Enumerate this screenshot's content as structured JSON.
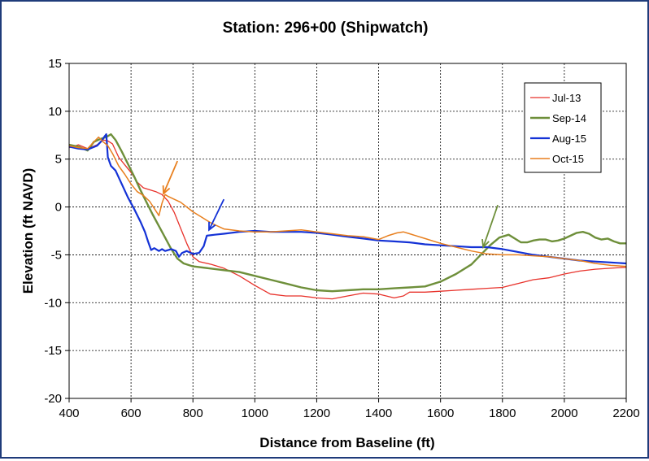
{
  "chart_data": {
    "type": "line",
    "title": "Station: 296+00 (Shipwatch)",
    "xlabel": "Distance from Baseline (ft)",
    "ylabel": "Elevation (ft NAVD)",
    "xlim": [
      400,
      2200
    ],
    "ylim": [
      -20,
      15
    ],
    "xticks": [
      400,
      600,
      800,
      1000,
      1200,
      1400,
      1600,
      1800,
      2000,
      2200
    ],
    "yticks": [
      15,
      10,
      5,
      0,
      -5,
      -10,
      -15,
      -20
    ],
    "grid": true,
    "legend_position": "top-right",
    "series": [
      {
        "name": "Jul-13",
        "color": "#e8322b",
        "width": 1.3,
        "points": [
          [
            400,
            6.2
          ],
          [
            430,
            6.5
          ],
          [
            460,
            6.1
          ],
          [
            490,
            6.5
          ],
          [
            510,
            7.0
          ],
          [
            525,
            6.9
          ],
          [
            540,
            6.6
          ],
          [
            560,
            5.2
          ],
          [
            580,
            4.4
          ],
          [
            600,
            3.6
          ],
          [
            620,
            2.6
          ],
          [
            640,
            2.0
          ],
          [
            660,
            1.8
          ],
          [
            680,
            1.6
          ],
          [
            700,
            1.3
          ],
          [
            720,
            0.6
          ],
          [
            740,
            -0.6
          ],
          [
            760,
            -2.2
          ],
          [
            780,
            -3.8
          ],
          [
            800,
            -5.2
          ],
          [
            820,
            -5.7
          ],
          [
            860,
            -6.0
          ],
          [
            900,
            -6.4
          ],
          [
            950,
            -7.2
          ],
          [
            1000,
            -8.2
          ],
          [
            1050,
            -9.1
          ],
          [
            1100,
            -9.3
          ],
          [
            1150,
            -9.3
          ],
          [
            1200,
            -9.5
          ],
          [
            1250,
            -9.6
          ],
          [
            1300,
            -9.3
          ],
          [
            1350,
            -9.0
          ],
          [
            1400,
            -9.1
          ],
          [
            1450,
            -9.5
          ],
          [
            1480,
            -9.3
          ],
          [
            1500,
            -8.9
          ],
          [
            1550,
            -8.9
          ],
          [
            1600,
            -8.8
          ],
          [
            1650,
            -8.7
          ],
          [
            1700,
            -8.6
          ],
          [
            1750,
            -8.5
          ],
          [
            1800,
            -8.4
          ],
          [
            1850,
            -8.0
          ],
          [
            1900,
            -7.6
          ],
          [
            1950,
            -7.4
          ],
          [
            2000,
            -7.0
          ],
          [
            2050,
            -6.7
          ],
          [
            2100,
            -6.5
          ],
          [
            2150,
            -6.4
          ],
          [
            2200,
            -6.3
          ]
        ]
      },
      {
        "name": "Sep-14",
        "color": "#6e8f3a",
        "width": 2.4,
        "points": [
          [
            400,
            6.5
          ],
          [
            430,
            6.3
          ],
          [
            460,
            5.9
          ],
          [
            480,
            6.8
          ],
          [
            500,
            7.1
          ],
          [
            520,
            7.3
          ],
          [
            535,
            7.6
          ],
          [
            550,
            7.0
          ],
          [
            570,
            5.8
          ],
          [
            590,
            4.5
          ],
          [
            610,
            3.2
          ],
          [
            630,
            1.8
          ],
          [
            650,
            0.5
          ],
          [
            670,
            -0.8
          ],
          [
            690,
            -2.0
          ],
          [
            710,
            -3.2
          ],
          [
            730,
            -4.4
          ],
          [
            750,
            -5.4
          ],
          [
            770,
            -5.9
          ],
          [
            800,
            -6.2
          ],
          [
            850,
            -6.4
          ],
          [
            900,
            -6.6
          ],
          [
            950,
            -6.8
          ],
          [
            1000,
            -7.2
          ],
          [
            1050,
            -7.6
          ],
          [
            1100,
            -8.0
          ],
          [
            1150,
            -8.4
          ],
          [
            1200,
            -8.7
          ],
          [
            1250,
            -8.8
          ],
          [
            1300,
            -8.7
          ],
          [
            1350,
            -8.6
          ],
          [
            1400,
            -8.6
          ],
          [
            1450,
            -8.5
          ],
          [
            1500,
            -8.4
          ],
          [
            1550,
            -8.3
          ],
          [
            1600,
            -7.8
          ],
          [
            1650,
            -7.0
          ],
          [
            1700,
            -6.0
          ],
          [
            1730,
            -5.0
          ],
          [
            1760,
            -4.0
          ],
          [
            1790,
            -3.2
          ],
          [
            1820,
            -2.9
          ],
          [
            1840,
            -3.3
          ],
          [
            1860,
            -3.7
          ],
          [
            1880,
            -3.7
          ],
          [
            1900,
            -3.5
          ],
          [
            1920,
            -3.4
          ],
          [
            1940,
            -3.4
          ],
          [
            1960,
            -3.6
          ],
          [
            1980,
            -3.5
          ],
          [
            2000,
            -3.3
          ],
          [
            2020,
            -3.0
          ],
          [
            2040,
            -2.7
          ],
          [
            2060,
            -2.6
          ],
          [
            2080,
            -2.8
          ],
          [
            2100,
            -3.2
          ],
          [
            2120,
            -3.4
          ],
          [
            2140,
            -3.3
          ],
          [
            2160,
            -3.6
          ],
          [
            2180,
            -3.8
          ],
          [
            2200,
            -3.8
          ]
        ]
      },
      {
        "name": "Aug-15",
        "color": "#1432d6",
        "width": 2.2,
        "points": [
          [
            400,
            6.3
          ],
          [
            430,
            6.1
          ],
          [
            460,
            6.0
          ],
          [
            490,
            6.4
          ],
          [
            505,
            6.9
          ],
          [
            515,
            7.4
          ],
          [
            520,
            7.6
          ],
          [
            525,
            5.2
          ],
          [
            535,
            4.3
          ],
          [
            550,
            3.8
          ],
          [
            570,
            2.4
          ],
          [
            590,
            1.0
          ],
          [
            610,
            -0.2
          ],
          [
            630,
            -1.5
          ],
          [
            645,
            -2.6
          ],
          [
            655,
            -3.6
          ],
          [
            665,
            -4.5
          ],
          [
            675,
            -4.3
          ],
          [
            690,
            -4.6
          ],
          [
            700,
            -4.4
          ],
          [
            710,
            -4.6
          ],
          [
            730,
            -4.4
          ],
          [
            745,
            -4.6
          ],
          [
            755,
            -5.2
          ],
          [
            765,
            -4.8
          ],
          [
            780,
            -4.6
          ],
          [
            800,
            -4.9
          ],
          [
            820,
            -4.8
          ],
          [
            835,
            -4.1
          ],
          [
            845,
            -3.0
          ],
          [
            870,
            -2.9
          ],
          [
            900,
            -2.8
          ],
          [
            950,
            -2.6
          ],
          [
            1000,
            -2.5
          ],
          [
            1050,
            -2.6
          ],
          [
            1100,
            -2.6
          ],
          [
            1150,
            -2.6
          ],
          [
            1200,
            -2.7
          ],
          [
            1250,
            -2.9
          ],
          [
            1300,
            -3.1
          ],
          [
            1350,
            -3.3
          ],
          [
            1400,
            -3.5
          ],
          [
            1450,
            -3.6
          ],
          [
            1500,
            -3.7
          ],
          [
            1550,
            -3.9
          ],
          [
            1600,
            -4.0
          ],
          [
            1650,
            -4.1
          ],
          [
            1700,
            -4.2
          ],
          [
            1750,
            -4.2
          ],
          [
            1800,
            -4.4
          ],
          [
            1850,
            -4.7
          ],
          [
            1900,
            -5.0
          ],
          [
            1950,
            -5.2
          ],
          [
            2000,
            -5.4
          ],
          [
            2050,
            -5.6
          ],
          [
            2100,
            -5.7
          ],
          [
            2150,
            -5.8
          ],
          [
            2200,
            -5.9
          ]
        ]
      },
      {
        "name": "Oct-15",
        "color": "#e87f1e",
        "width": 1.5,
        "points": [
          [
            400,
            6.4
          ],
          [
            430,
            6.2
          ],
          [
            460,
            6.1
          ],
          [
            480,
            6.8
          ],
          [
            495,
            7.3
          ],
          [
            510,
            6.8
          ],
          [
            525,
            6.4
          ],
          [
            540,
            5.6
          ],
          [
            560,
            4.3
          ],
          [
            580,
            3.4
          ],
          [
            600,
            2.4
          ],
          [
            620,
            1.6
          ],
          [
            640,
            1.2
          ],
          [
            660,
            0.6
          ],
          [
            680,
            -0.4
          ],
          [
            690,
            -0.9
          ],
          [
            700,
            0.4
          ],
          [
            710,
            1.3
          ],
          [
            720,
            1.1
          ],
          [
            740,
            0.8
          ],
          [
            760,
            0.5
          ],
          [
            780,
            0.0
          ],
          [
            800,
            -0.5
          ],
          [
            830,
            -1.1
          ],
          [
            860,
            -1.7
          ],
          [
            900,
            -2.3
          ],
          [
            950,
            -2.5
          ],
          [
            1000,
            -2.6
          ],
          [
            1050,
            -2.6
          ],
          [
            1100,
            -2.5
          ],
          [
            1150,
            -2.4
          ],
          [
            1200,
            -2.6
          ],
          [
            1250,
            -2.8
          ],
          [
            1300,
            -3.0
          ],
          [
            1350,
            -3.1
          ],
          [
            1400,
            -3.4
          ],
          [
            1430,
            -3.0
          ],
          [
            1460,
            -2.7
          ],
          [
            1480,
            -2.6
          ],
          [
            1500,
            -2.8
          ],
          [
            1550,
            -3.3
          ],
          [
            1600,
            -3.8
          ],
          [
            1650,
            -4.2
          ],
          [
            1700,
            -4.6
          ],
          [
            1750,
            -4.9
          ],
          [
            1800,
            -5.0
          ],
          [
            1850,
            -5.0
          ],
          [
            1900,
            -5.1
          ],
          [
            1950,
            -5.2
          ],
          [
            2000,
            -5.4
          ],
          [
            2050,
            -5.6
          ],
          [
            2100,
            -5.9
          ],
          [
            2150,
            -6.1
          ],
          [
            2200,
            -6.2
          ]
        ]
      }
    ],
    "annotations": [
      {
        "type": "arrow",
        "color": "#e87f1e",
        "from": [
          750,
          4.8
        ],
        "to": [
          705,
          1.4
        ]
      },
      {
        "type": "arrow",
        "color": "#1432d6",
        "from": [
          900,
          0.8
        ],
        "to": [
          852,
          -2.4
        ]
      },
      {
        "type": "arrow",
        "color": "#6e8f3a",
        "from": [
          1785,
          0.2
        ],
        "to": [
          1738,
          -4.2
        ]
      }
    ]
  }
}
